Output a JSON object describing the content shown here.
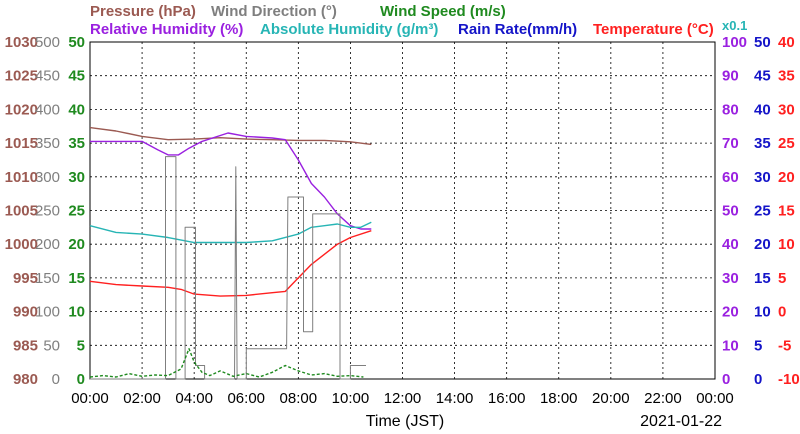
{
  "chart_data": {
    "type": "line",
    "legend": {
      "row1": [
        {
          "key": "pressure",
          "label": "Pressure (hPa)",
          "color": "#9b5a52"
        },
        {
          "key": "wind_dir",
          "label": "Wind Direction (°)",
          "color": "#7f7f7f"
        },
        {
          "key": "wind_speed",
          "label": "Wind Speed (m/s)",
          "color": "#1f8a1f"
        }
      ],
      "row2": [
        {
          "key": "rel_hum",
          "label": "Relative Humidity (%)",
          "color": "#9a20e0"
        },
        {
          "key": "abs_hum",
          "label": "Absolute Humidity (g/m³)",
          "color": "#27b5b5"
        },
        {
          "key": "rain",
          "label": "Rain Rate(mm/h)",
          "color": "#1414c8"
        },
        {
          "key": "temp",
          "label": "Temperature (°C)",
          "color": "#ff2020"
        }
      ],
      "abs_hum_scale": "x0.1"
    },
    "x_ticks": [
      "00:00",
      "02:00",
      "04:00",
      "06:00",
      "08:00",
      "10:00",
      "12:00",
      "14:00",
      "16:00",
      "18:00",
      "20:00",
      "22:00",
      "00:00"
    ],
    "xlabel": "Time (JST)",
    "date": "2021-01-22",
    "axes": {
      "pressure": {
        "min": 980,
        "max": 1030,
        "ticks": [
          "980",
          "985",
          "990",
          "995",
          "1000",
          "1005",
          "1010",
          "1015",
          "1020",
          "1025",
          "1030"
        ],
        "color": "#9b5a52"
      },
      "wind_dir": {
        "min": 0,
        "max": 500,
        "ticks": [
          "0",
          "50",
          "100",
          "150",
          "200",
          "250",
          "300",
          "350",
          "400",
          "450",
          "500"
        ],
        "color": "#7f7f7f"
      },
      "wind_speed": {
        "min": 0,
        "max": 50,
        "ticks": [
          "0",
          "5",
          "10",
          "15",
          "20",
          "25",
          "30",
          "35",
          "40",
          "45",
          "50"
        ],
        "color": "#1f8a1f"
      },
      "rel_hum": {
        "min": 0,
        "max": 100,
        "ticks": [
          "0",
          "10",
          "20",
          "30",
          "40",
          "50",
          "60",
          "70",
          "80",
          "90",
          "100"
        ],
        "color": "#9a20e0"
      },
      "rain": {
        "min": 0,
        "max": 50,
        "ticks": [
          "0",
          "5",
          "10",
          "15",
          "20",
          "25",
          "30",
          "35",
          "40",
          "45",
          "50"
        ],
        "color": "#1414c8"
      },
      "temp": {
        "min": -10,
        "max": 40,
        "ticks": [
          "-10",
          "-5",
          "0",
          "5",
          "10",
          "15",
          "20",
          "25",
          "30",
          "35",
          "40"
        ],
        "color": "#ff2020"
      }
    },
    "series": [
      {
        "key": "pressure",
        "axis": "pressure",
        "color": "#9b5a52",
        "points": [
          [
            0,
            1017.3
          ],
          [
            1,
            1016.8
          ],
          [
            2,
            1016.0
          ],
          [
            3,
            1015.5
          ],
          [
            4,
            1015.6
          ],
          [
            5,
            1015.8
          ],
          [
            6,
            1015.6
          ],
          [
            7,
            1015.5
          ],
          [
            8,
            1015.4
          ],
          [
            9,
            1015.4
          ],
          [
            10,
            1015.2
          ],
          [
            10.8,
            1014.8
          ]
        ]
      },
      {
        "key": "rel_hum",
        "axis": "rel_hum",
        "color": "#9a20e0",
        "points": [
          [
            0,
            70.5
          ],
          [
            1,
            70.5
          ],
          [
            2,
            70.5
          ],
          [
            2.6,
            68
          ],
          [
            3.0,
            66.5
          ],
          [
            3.4,
            66.5
          ],
          [
            3.8,
            68.5
          ],
          [
            4.3,
            70.5
          ],
          [
            5.3,
            73
          ],
          [
            6.0,
            72
          ],
          [
            7.0,
            71.5
          ],
          [
            7.5,
            71
          ],
          [
            8.0,
            65
          ],
          [
            8.5,
            58
          ],
          [
            9.0,
            54
          ],
          [
            9.5,
            49
          ],
          [
            10.0,
            45.5
          ],
          [
            10.4,
            44.5
          ],
          [
            10.8,
            44.5
          ]
        ]
      },
      {
        "key": "abs_hum",
        "axis": "rel_hum",
        "color": "#27b5b5",
        "points": [
          [
            0,
            45.5
          ],
          [
            1,
            43.5
          ],
          [
            2,
            43
          ],
          [
            3,
            42
          ],
          [
            4,
            40.5
          ],
          [
            5,
            40.5
          ],
          [
            6,
            40.5
          ],
          [
            7,
            41
          ],
          [
            8,
            43
          ],
          [
            8.5,
            45
          ],
          [
            9,
            45.5
          ],
          [
            9.5,
            46
          ],
          [
            10,
            45
          ],
          [
            10.4,
            45
          ],
          [
            10.8,
            46.5
          ]
        ]
      },
      {
        "key": "temp",
        "axis": "temp",
        "color": "#ff2020",
        "points": [
          [
            0,
            4.5
          ],
          [
            1,
            4.0
          ],
          [
            2,
            3.8
          ],
          [
            3,
            3.6
          ],
          [
            3.5,
            3.3
          ],
          [
            4,
            2.6
          ],
          [
            5,
            2.3
          ],
          [
            6,
            2.4
          ],
          [
            7,
            2.8
          ],
          [
            7.5,
            3.0
          ],
          [
            8,
            5.0
          ],
          [
            8.5,
            7.0
          ],
          [
            9,
            8.5
          ],
          [
            9.5,
            10.0
          ],
          [
            10,
            11.0
          ],
          [
            10.8,
            12.0
          ]
        ]
      },
      {
        "key": "wind_dir",
        "axis": "wind_dir",
        "color": "#7f7f7f",
        "points": [
          [
            0,
            0
          ],
          [
            2.9,
            0
          ],
          [
            2.9,
            330
          ],
          [
            3.3,
            330
          ],
          [
            3.3,
            0
          ],
          [
            3.65,
            0
          ],
          [
            3.65,
            225
          ],
          [
            4.05,
            225
          ],
          [
            4.05,
            20
          ],
          [
            4.4,
            20
          ],
          [
            4.4,
            0
          ],
          [
            5.55,
            0
          ],
          [
            5.6,
            315
          ],
          [
            5.65,
            0
          ],
          [
            6.0,
            0
          ],
          [
            6.0,
            45
          ],
          [
            7.55,
            45
          ],
          [
            7.6,
            270
          ],
          [
            8.2,
            270
          ],
          [
            8.2,
            70
          ],
          [
            8.55,
            70
          ],
          [
            8.55,
            245
          ],
          [
            9.6,
            245
          ],
          [
            9.6,
            0
          ],
          [
            10.0,
            0
          ],
          [
            10.0,
            20
          ],
          [
            10.6,
            20
          ]
        ]
      },
      {
        "key": "wind_speed",
        "axis": "wind_speed",
        "color": "#1f8a1f",
        "points": [
          [
            0,
            0.3
          ],
          [
            0.5,
            0.5
          ],
          [
            1,
            0.3
          ],
          [
            1.5,
            0.8
          ],
          [
            2,
            0.4
          ],
          [
            2.5,
            0.6
          ],
          [
            3,
            0.5
          ],
          [
            3.5,
            1.5
          ],
          [
            3.8,
            4.5
          ],
          [
            4.0,
            2.5
          ],
          [
            4.3,
            1.0
          ],
          [
            4.6,
            0.5
          ],
          [
            5,
            1.2
          ],
          [
            5.5,
            0.4
          ],
          [
            6,
            0.8
          ],
          [
            6.5,
            0.3
          ],
          [
            7,
            1.0
          ],
          [
            7.5,
            2.0
          ],
          [
            8,
            1.2
          ],
          [
            8.5,
            0.6
          ],
          [
            9,
            0.8
          ],
          [
            9.5,
            0.4
          ],
          [
            10,
            0.5
          ],
          [
            10.5,
            0.3
          ]
        ]
      }
    ]
  }
}
